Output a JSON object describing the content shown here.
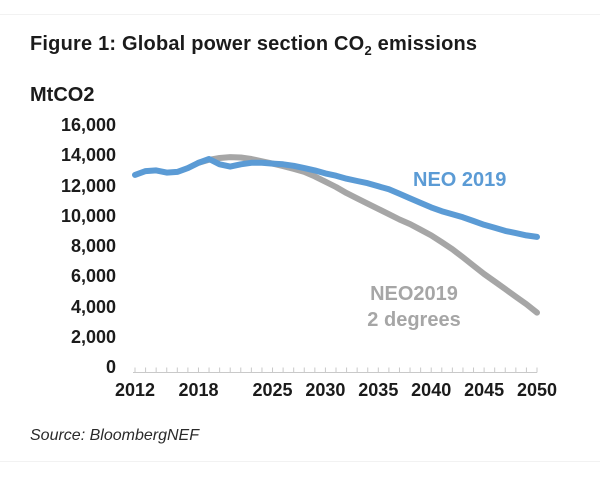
{
  "page": {
    "title_prefix": "Figure 1: Global power section CO",
    "title_sub": "2",
    "title_suffix": " emissions",
    "source": "Source: BloombergNEF"
  },
  "colors": {
    "neo_2019": "#5B9BD5",
    "neo_2019_2deg": "#A6A6A6",
    "text": "#1b1b1b",
    "axis": "#c9c9c9"
  },
  "chart_data": {
    "type": "line",
    "title": "Figure 1: Global power section CO2 emissions",
    "ylabel": "MtCO2",
    "xlabel": "",
    "grid": false,
    "legend_position": "inline-annotations",
    "xlim": [
      2012,
      2050
    ],
    "ylim": [
      0,
      16000
    ],
    "y_axis": {
      "tick_step": 2000,
      "tick_values": [
        16000,
        14000,
        12000,
        10000,
        8000,
        6000,
        4000,
        2000,
        0
      ],
      "tick_labels": [
        "16,000",
        "14,000",
        "12,000",
        "10,000",
        "8,000",
        "6,000",
        "4,000",
        "2,000",
        "0"
      ]
    },
    "x_axis": {
      "minor_tick_step": 1,
      "labeled_ticks": [
        2012,
        2018,
        2025,
        2030,
        2035,
        2040,
        2045,
        2050
      ],
      "tick_labels": [
        "2012",
        "2018",
        "2025",
        "2030",
        "2035",
        "2040",
        "2045",
        "2050"
      ]
    },
    "series": [
      {
        "name": "NEO 2019",
        "color": "#5B9BD5",
        "annotation_lines": [
          "NEO 2019"
        ],
        "points": [
          [
            2012,
            12700
          ],
          [
            2013,
            12950
          ],
          [
            2014,
            13000
          ],
          [
            2015,
            12850
          ],
          [
            2016,
            12900
          ],
          [
            2017,
            13150
          ],
          [
            2018,
            13500
          ],
          [
            2019,
            13750
          ],
          [
            2020,
            13400
          ],
          [
            2021,
            13250
          ],
          [
            2022,
            13400
          ],
          [
            2023,
            13500
          ],
          [
            2024,
            13500
          ],
          [
            2025,
            13450
          ],
          [
            2026,
            13400
          ],
          [
            2027,
            13300
          ],
          [
            2028,
            13150
          ],
          [
            2029,
            13000
          ],
          [
            2030,
            12800
          ],
          [
            2031,
            12650
          ],
          [
            2032,
            12450
          ],
          [
            2033,
            12300
          ],
          [
            2034,
            12150
          ],
          [
            2035,
            11950
          ],
          [
            2036,
            11750
          ],
          [
            2037,
            11450
          ],
          [
            2038,
            11150
          ],
          [
            2039,
            10850
          ],
          [
            2040,
            10550
          ],
          [
            2041,
            10300
          ],
          [
            2042,
            10100
          ],
          [
            2043,
            9900
          ],
          [
            2044,
            9650
          ],
          [
            2045,
            9400
          ],
          [
            2046,
            9200
          ],
          [
            2047,
            9000
          ],
          [
            2048,
            8850
          ],
          [
            2049,
            8700
          ],
          [
            2050,
            8600
          ]
        ]
      },
      {
        "name": "NEO2019 2 degrees",
        "color": "#A6A6A6",
        "annotation_lines": [
          "NEO2019",
          "2 degrees"
        ],
        "points": [
          [
            2018,
            13500
          ],
          [
            2019,
            13700
          ],
          [
            2020,
            13820
          ],
          [
            2021,
            13880
          ],
          [
            2022,
            13850
          ],
          [
            2023,
            13750
          ],
          [
            2024,
            13600
          ],
          [
            2025,
            13450
          ],
          [
            2026,
            13280
          ],
          [
            2027,
            13100
          ],
          [
            2028,
            12900
          ],
          [
            2029,
            12600
          ],
          [
            2030,
            12250
          ],
          [
            2031,
            11900
          ],
          [
            2032,
            11500
          ],
          [
            2033,
            11150
          ],
          [
            2034,
            10800
          ],
          [
            2035,
            10450
          ],
          [
            2036,
            10100
          ],
          [
            2037,
            9750
          ],
          [
            2038,
            9450
          ],
          [
            2039,
            9080
          ],
          [
            2040,
            8700
          ],
          [
            2041,
            8250
          ],
          [
            2042,
            7780
          ],
          [
            2043,
            7250
          ],
          [
            2044,
            6700
          ],
          [
            2045,
            6150
          ],
          [
            2046,
            5650
          ],
          [
            2047,
            5150
          ],
          [
            2048,
            4650
          ],
          [
            2049,
            4150
          ],
          [
            2050,
            3600
          ]
        ]
      }
    ]
  }
}
